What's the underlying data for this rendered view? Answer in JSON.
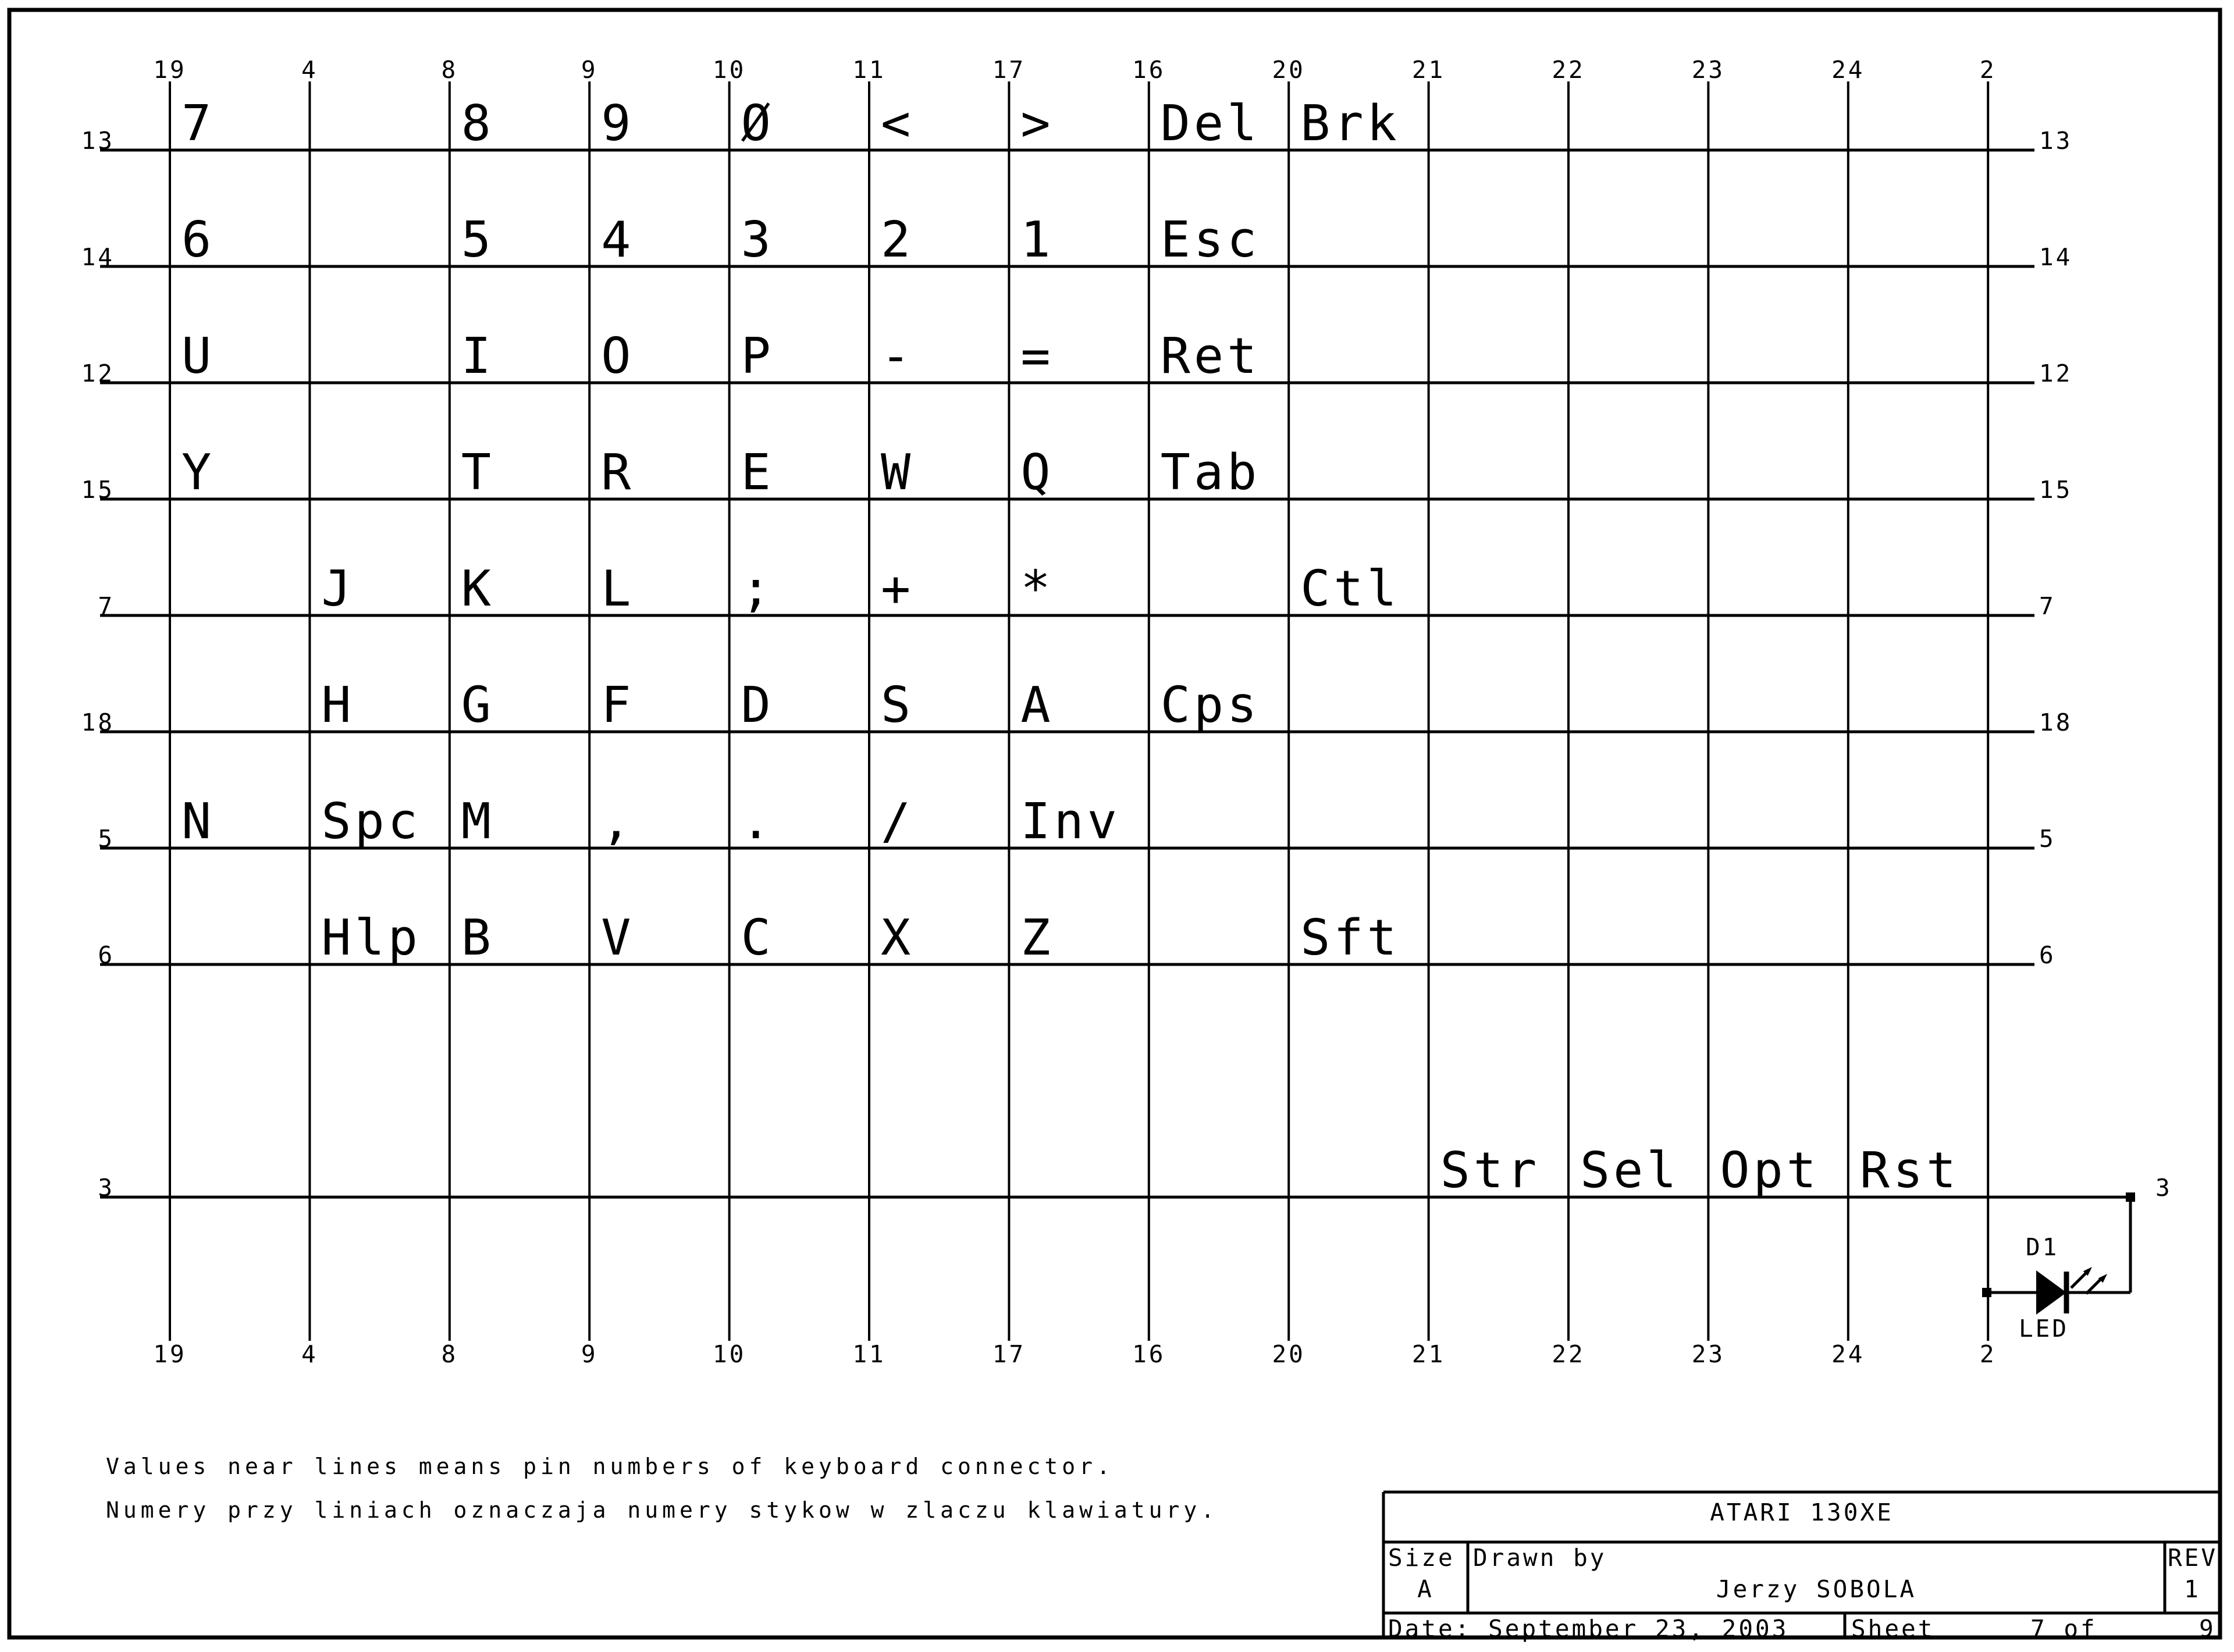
{
  "notes": {
    "english": "Values near lines means pin numbers of keyboard connector.",
    "polish": "Numery przy liniach oznaczaja numery stykow w zlaczu klawiatury."
  },
  "matrix": {
    "column_pins": [
      "19",
      "4",
      "8",
      "9",
      "10",
      "11",
      "17",
      "16",
      "20",
      "21",
      "22",
      "23",
      "24",
      "2"
    ],
    "row_pins": [
      "13",
      "14",
      "12",
      "15",
      "7",
      "18",
      "5",
      "6"
    ],
    "function_row_pin": "3",
    "keys": [
      {
        "label": "7",
        "row": 0,
        "col": 0
      },
      {
        "label": "8",
        "row": 0,
        "col": 2
      },
      {
        "label": "9",
        "row": 0,
        "col": 3
      },
      {
        "label": "Ø",
        "row": 0,
        "col": 4
      },
      {
        "label": "<",
        "row": 0,
        "col": 5
      },
      {
        "label": ">",
        "row": 0,
        "col": 6
      },
      {
        "label": "Del",
        "row": 0,
        "col": 7
      },
      {
        "label": "Brk",
        "row": 0,
        "col": 8
      },
      {
        "label": "6",
        "row": 1,
        "col": 0
      },
      {
        "label": "5",
        "row": 1,
        "col": 2
      },
      {
        "label": "4",
        "row": 1,
        "col": 3
      },
      {
        "label": "3",
        "row": 1,
        "col": 4
      },
      {
        "label": "2",
        "row": 1,
        "col": 5
      },
      {
        "label": "1",
        "row": 1,
        "col": 6
      },
      {
        "label": "Esc",
        "row": 1,
        "col": 7
      },
      {
        "label": "U",
        "row": 2,
        "col": 0
      },
      {
        "label": "I",
        "row": 2,
        "col": 2
      },
      {
        "label": "O",
        "row": 2,
        "col": 3
      },
      {
        "label": "P",
        "row": 2,
        "col": 4
      },
      {
        "label": "-",
        "row": 2,
        "col": 5
      },
      {
        "label": "=",
        "row": 2,
        "col": 6
      },
      {
        "label": "Ret",
        "row": 2,
        "col": 7
      },
      {
        "label": "Y",
        "row": 3,
        "col": 0
      },
      {
        "label": "T",
        "row": 3,
        "col": 2
      },
      {
        "label": "R",
        "row": 3,
        "col": 3
      },
      {
        "label": "E",
        "row": 3,
        "col": 4
      },
      {
        "label": "W",
        "row": 3,
        "col": 5
      },
      {
        "label": "Q",
        "row": 3,
        "col": 6
      },
      {
        "label": "Tab",
        "row": 3,
        "col": 7
      },
      {
        "label": "J",
        "row": 4,
        "col": 1
      },
      {
        "label": "K",
        "row": 4,
        "col": 2
      },
      {
        "label": "L",
        "row": 4,
        "col": 3
      },
      {
        "label": ";",
        "row": 4,
        "col": 4
      },
      {
        "label": "+",
        "row": 4,
        "col": 5
      },
      {
        "label": "*",
        "row": 4,
        "col": 6
      },
      {
        "label": "Ctl",
        "row": 4,
        "col": 8
      },
      {
        "label": "H",
        "row": 5,
        "col": 1
      },
      {
        "label": "G",
        "row": 5,
        "col": 2
      },
      {
        "label": "F",
        "row": 5,
        "col": 3
      },
      {
        "label": "D",
        "row": 5,
        "col": 4
      },
      {
        "label": "S",
        "row": 5,
        "col": 5
      },
      {
        "label": "A",
        "row": 5,
        "col": 6
      },
      {
        "label": "Cps",
        "row": 5,
        "col": 7
      },
      {
        "label": "N",
        "row": 6,
        "col": 0
      },
      {
        "label": "Spc",
        "row": 6,
        "col": 1
      },
      {
        "label": "M",
        "row": 6,
        "col": 2
      },
      {
        "label": ",",
        "row": 6,
        "col": 3
      },
      {
        "label": ".",
        "row": 6,
        "col": 4
      },
      {
        "label": "/",
        "row": 6,
        "col": 5
      },
      {
        "label": "Inv",
        "row": 6,
        "col": 6
      },
      {
        "label": "Hlp",
        "row": 7,
        "col": 1
      },
      {
        "label": "B",
        "row": 7,
        "col": 2
      },
      {
        "label": "V",
        "row": 7,
        "col": 3
      },
      {
        "label": "C",
        "row": 7,
        "col": 4
      },
      {
        "label": "X",
        "row": 7,
        "col": 5
      },
      {
        "label": "Z",
        "row": 7,
        "col": 6
      },
      {
        "label": "Sft",
        "row": 7,
        "col": 8
      },
      {
        "label": "Str",
        "row": 8,
        "col": 9
      },
      {
        "label": "Sel",
        "row": 8,
        "col": 10
      },
      {
        "label": "Opt",
        "row": 8,
        "col": 11
      },
      {
        "label": "Rst",
        "row": 8,
        "col": 12
      }
    ]
  },
  "led": {
    "designator": "D1",
    "type": "LED"
  },
  "title_block": {
    "title": "ATARI 130XE",
    "size_label": "Size",
    "size_value": "A",
    "drawn_by_label": "Drawn by",
    "drawn_by_value": "Jerzy SOBOLA",
    "rev_label": "REV",
    "rev_value": "1",
    "date": "Date: September 23, 2003",
    "sheet_label": "Sheet",
    "sheet_number": "7 of",
    "sheet_total": "9"
  },
  "colors": {
    "ink": "#000000",
    "paper": "#ffffff"
  }
}
